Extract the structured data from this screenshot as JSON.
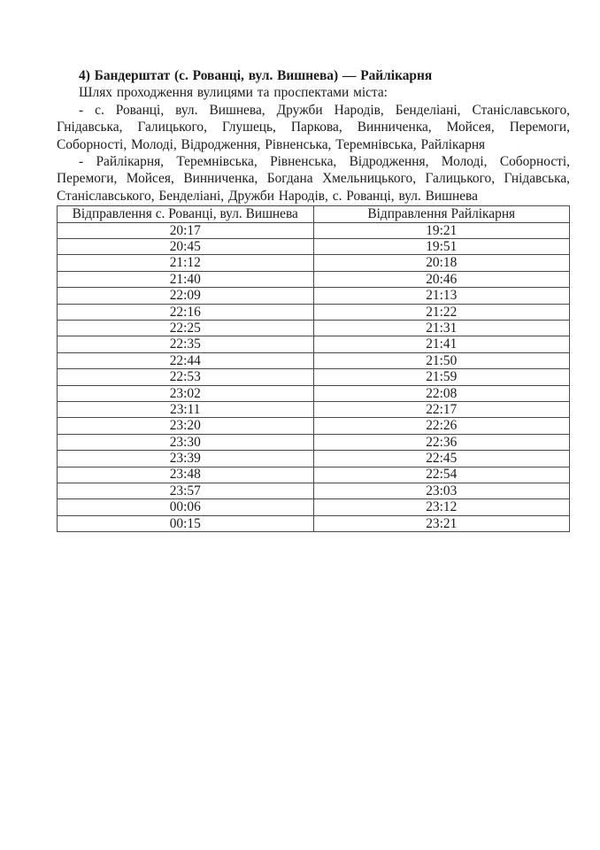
{
  "colors": {
    "background": "#ffffff",
    "text": "#1b1b1b",
    "table_border": "#4a4a4a"
  },
  "document": {
    "title": "4) Бандерштат (с. Рованці, вул. Вишнева) — Райлікарня",
    "route_intro": "Шлях проходження вулицями та проспектами міста:",
    "route_forward": "- с. Рованці, вул. Вишнева, Дружби Народів, Бенделіані, Станіславського, Гнідавська, Галицького, Глушець, Паркова, Винниченка, Мойсея, Перемоги, Соборності, Молоді, Відродження, Рівненська, Теремнівська, Райлікарня",
    "route_backward": "- Райлікарня, Теремнівська, Рівненська, Відродження, Молоді, Соборності, Перемоги, Мойсея, Винниченка, Богдана Хмельницького, Галицького, Гнідавська, Станіславського, Бенделіані, Дружби Народів, с. Рованці, вул. Вишнева",
    "timetable": {
      "headers": [
        "Відправлення с. Рованці, вул. Вишнева",
        "Відправлення Райлікарня"
      ],
      "rows": [
        [
          "20:17",
          "19:21"
        ],
        [
          "20:45",
          "19:51"
        ],
        [
          "21:12",
          "20:18"
        ],
        [
          "21:40",
          "20:46"
        ],
        [
          "22:09",
          "21:13"
        ],
        [
          "22:16",
          "21:22"
        ],
        [
          "22:25",
          "21:31"
        ],
        [
          "22:35",
          "21:41"
        ],
        [
          "22:44",
          "21:50"
        ],
        [
          "22:53",
          "21:59"
        ],
        [
          "23:02",
          "22:08"
        ],
        [
          "23:11",
          "22:17"
        ],
        [
          "23:20",
          "22:26"
        ],
        [
          "23:30",
          "22:36"
        ],
        [
          "23:39",
          "22:45"
        ],
        [
          "23:48",
          "22:54"
        ],
        [
          "23:57",
          "23:03"
        ],
        [
          "00:06",
          "23:12"
        ],
        [
          "00:15",
          "23:21"
        ]
      ]
    }
  }
}
